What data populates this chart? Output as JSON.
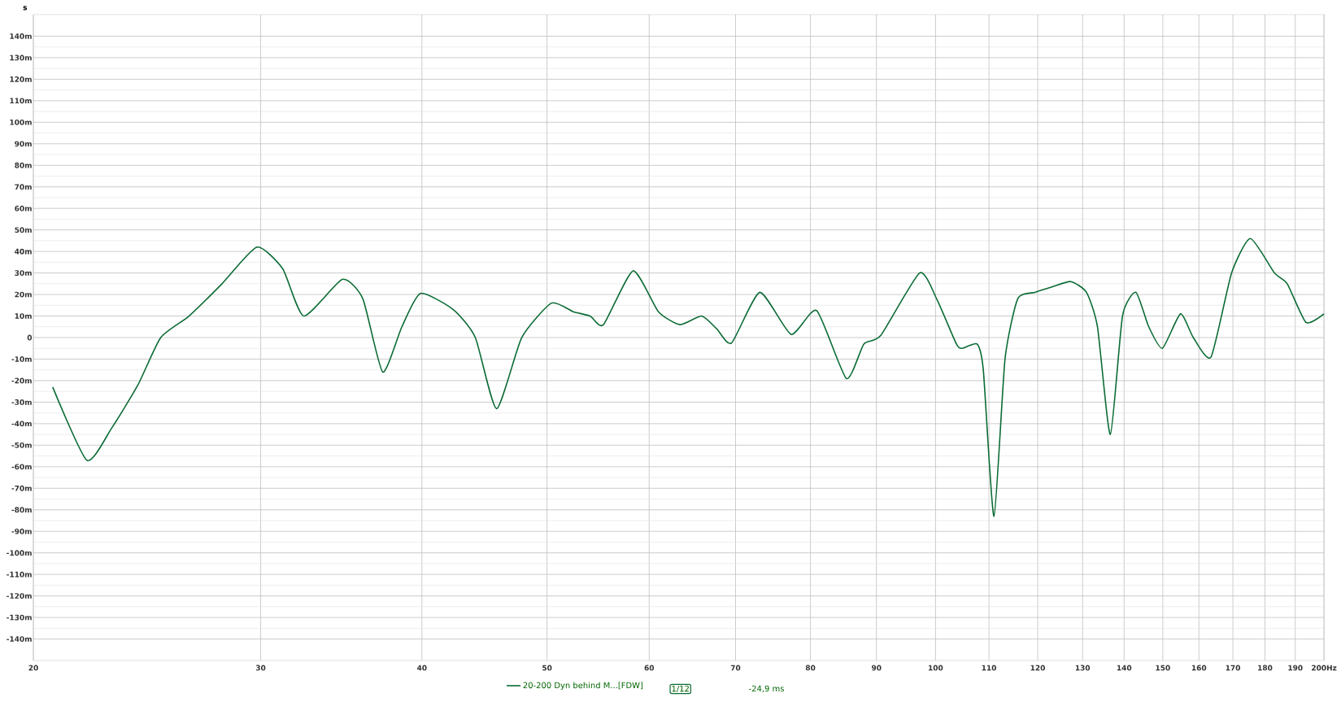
{
  "chart_data": {
    "type": "line",
    "ylabel": "s",
    "log": "x",
    "xlim": [
      20,
      200
    ],
    "ylim": [
      -150,
      150
    ],
    "xticks": [
      20,
      30,
      40,
      50,
      60,
      70,
      80,
      90,
      100,
      110,
      120,
      130,
      140,
      150,
      160,
      170,
      180,
      190,
      {
        "value": 200,
        "label": "200Hz"
      }
    ],
    "yticks": [
      {
        "value": -140,
        "label": "-140m"
      },
      {
        "value": -130,
        "label": "-130m"
      },
      {
        "value": -120,
        "label": "-120m"
      },
      {
        "value": -110,
        "label": "-110m"
      },
      {
        "value": -100,
        "label": "-100m"
      },
      {
        "value": -90,
        "label": "-90m"
      },
      {
        "value": -80,
        "label": "-80m"
      },
      {
        "value": -70,
        "label": "-70m"
      },
      {
        "value": -60,
        "label": "-60m"
      },
      {
        "value": -50,
        "label": "-50m"
      },
      {
        "value": -40,
        "label": "-40m"
      },
      {
        "value": -30,
        "label": "-30m"
      },
      {
        "value": -20,
        "label": "-20m"
      },
      {
        "value": -10,
        "label": "-10m"
      },
      0,
      {
        "value": 10,
        "label": "10m"
      },
      {
        "value": 20,
        "label": "20m"
      },
      {
        "value": 30,
        "label": "30m"
      },
      {
        "value": 40,
        "label": "40m"
      },
      {
        "value": 50,
        "label": "50m"
      },
      {
        "value": 60,
        "label": "60m"
      },
      {
        "value": 70,
        "label": "70m"
      },
      {
        "value": 80,
        "label": "80m"
      },
      {
        "value": 90,
        "label": "90m"
      },
      {
        "value": 100,
        "label": "100m"
      },
      {
        "value": 110,
        "label": "110m"
      },
      {
        "value": 120,
        "label": "120m"
      },
      {
        "value": 130,
        "label": "130m"
      },
      {
        "value": 140,
        "label": "140m"
      }
    ],
    "grid": true,
    "legend": "bottom",
    "marker": "none",
    "line_style": "solid",
    "annotations": [
      "1/12",
      "-24,9 ms"
    ],
    "series": [
      {
        "name": "20-200 Dyn behind M...[FDW]",
        "color": "#0b6b35",
        "x": [
          20.7,
          22.0,
          23.0,
          24.1,
          25.1,
          26.4,
          28.0,
          29.8,
          31.2,
          32.4,
          34.7,
          36.0,
          37.3,
          38.6,
          39.9,
          42.3,
          44.0,
          45.7,
          47.8,
          50.4,
          52.4,
          54.0,
          55.3,
          58.3,
          61.0,
          63.4,
          65.9,
          67.7,
          69.5,
          73.1,
          77.3,
          80.9,
          85.3,
          88.0,
          90.7,
          97.2,
          100.2,
          103.8,
          104.9,
          107.7,
          108.9,
          111.0,
          113.2,
          115.8,
          119.4,
          123.1,
          127.3,
          130.9,
          133.5,
          136.6,
          139.6,
          143.0,
          146.3,
          149.9,
          154.8,
          158.4,
          163.5,
          169.6,
          175.4,
          183.1,
          187.3,
          193.7,
          200
        ],
        "values": [
          -23,
          -57,
          -42,
          -22,
          0,
          10,
          25,
          42,
          32,
          10,
          27,
          18,
          -16,
          5,
          20.5,
          13,
          0,
          -33,
          0,
          16,
          12,
          10,
          6,
          31,
          12,
          6,
          10,
          4,
          -2.5,
          21,
          1.5,
          12.5,
          -19,
          -3,
          1,
          30,
          18,
          -3,
          -5,
          -3,
          -15,
          -83,
          -10,
          18,
          21,
          23.5,
          26,
          21,
          5,
          -45,
          10,
          21,
          5,
          -5,
          11,
          0,
          -9,
          30,
          46,
          30,
          25,
          7,
          11
        ]
      }
    ]
  }
}
